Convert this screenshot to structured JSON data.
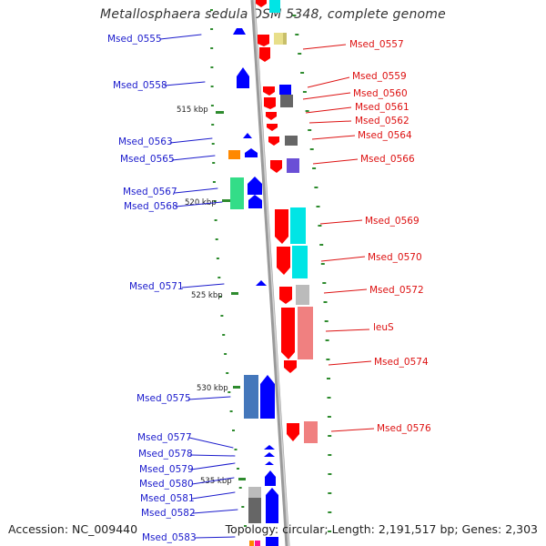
{
  "title": "Metallosphaera sedula DSM 5348, complete genome",
  "footer": {
    "accession": "Accession: NC_009440",
    "topology": "Topology: circular; Length: 2,191,517 bp; Genes: 2,303"
  },
  "ticks": [
    "515 kbp",
    "520 kbp",
    "525 kbp",
    "530 kbp",
    "535 kbp"
  ],
  "left_labels": [
    "Msed_0555",
    "Msed_0558",
    "Msed_0563",
    "Msed_0565",
    "Msed_0567",
    "Msed_0568",
    "Msed_0571",
    "Msed_0575",
    "Msed_0577",
    "Msed_0578",
    "Msed_0579",
    "Msed_0580",
    "Msed_0581",
    "Msed_0582",
    "Msed_0583"
  ],
  "right_labels": [
    "Msed_0557",
    "Msed_0559",
    "Msed_0560",
    "Msed_0561",
    "Msed_0562",
    "Msed_0564",
    "Msed_0566",
    "Msed_0569",
    "Msed_0570",
    "Msed_0572",
    "leuS",
    "Msed_0574",
    "Msed_0576"
  ],
  "colors": {
    "left_label": "#1a1acc",
    "right_label": "#dd1111",
    "backbone": "#8a8a8a",
    "tick_green": "#2e8b2e"
  }
}
